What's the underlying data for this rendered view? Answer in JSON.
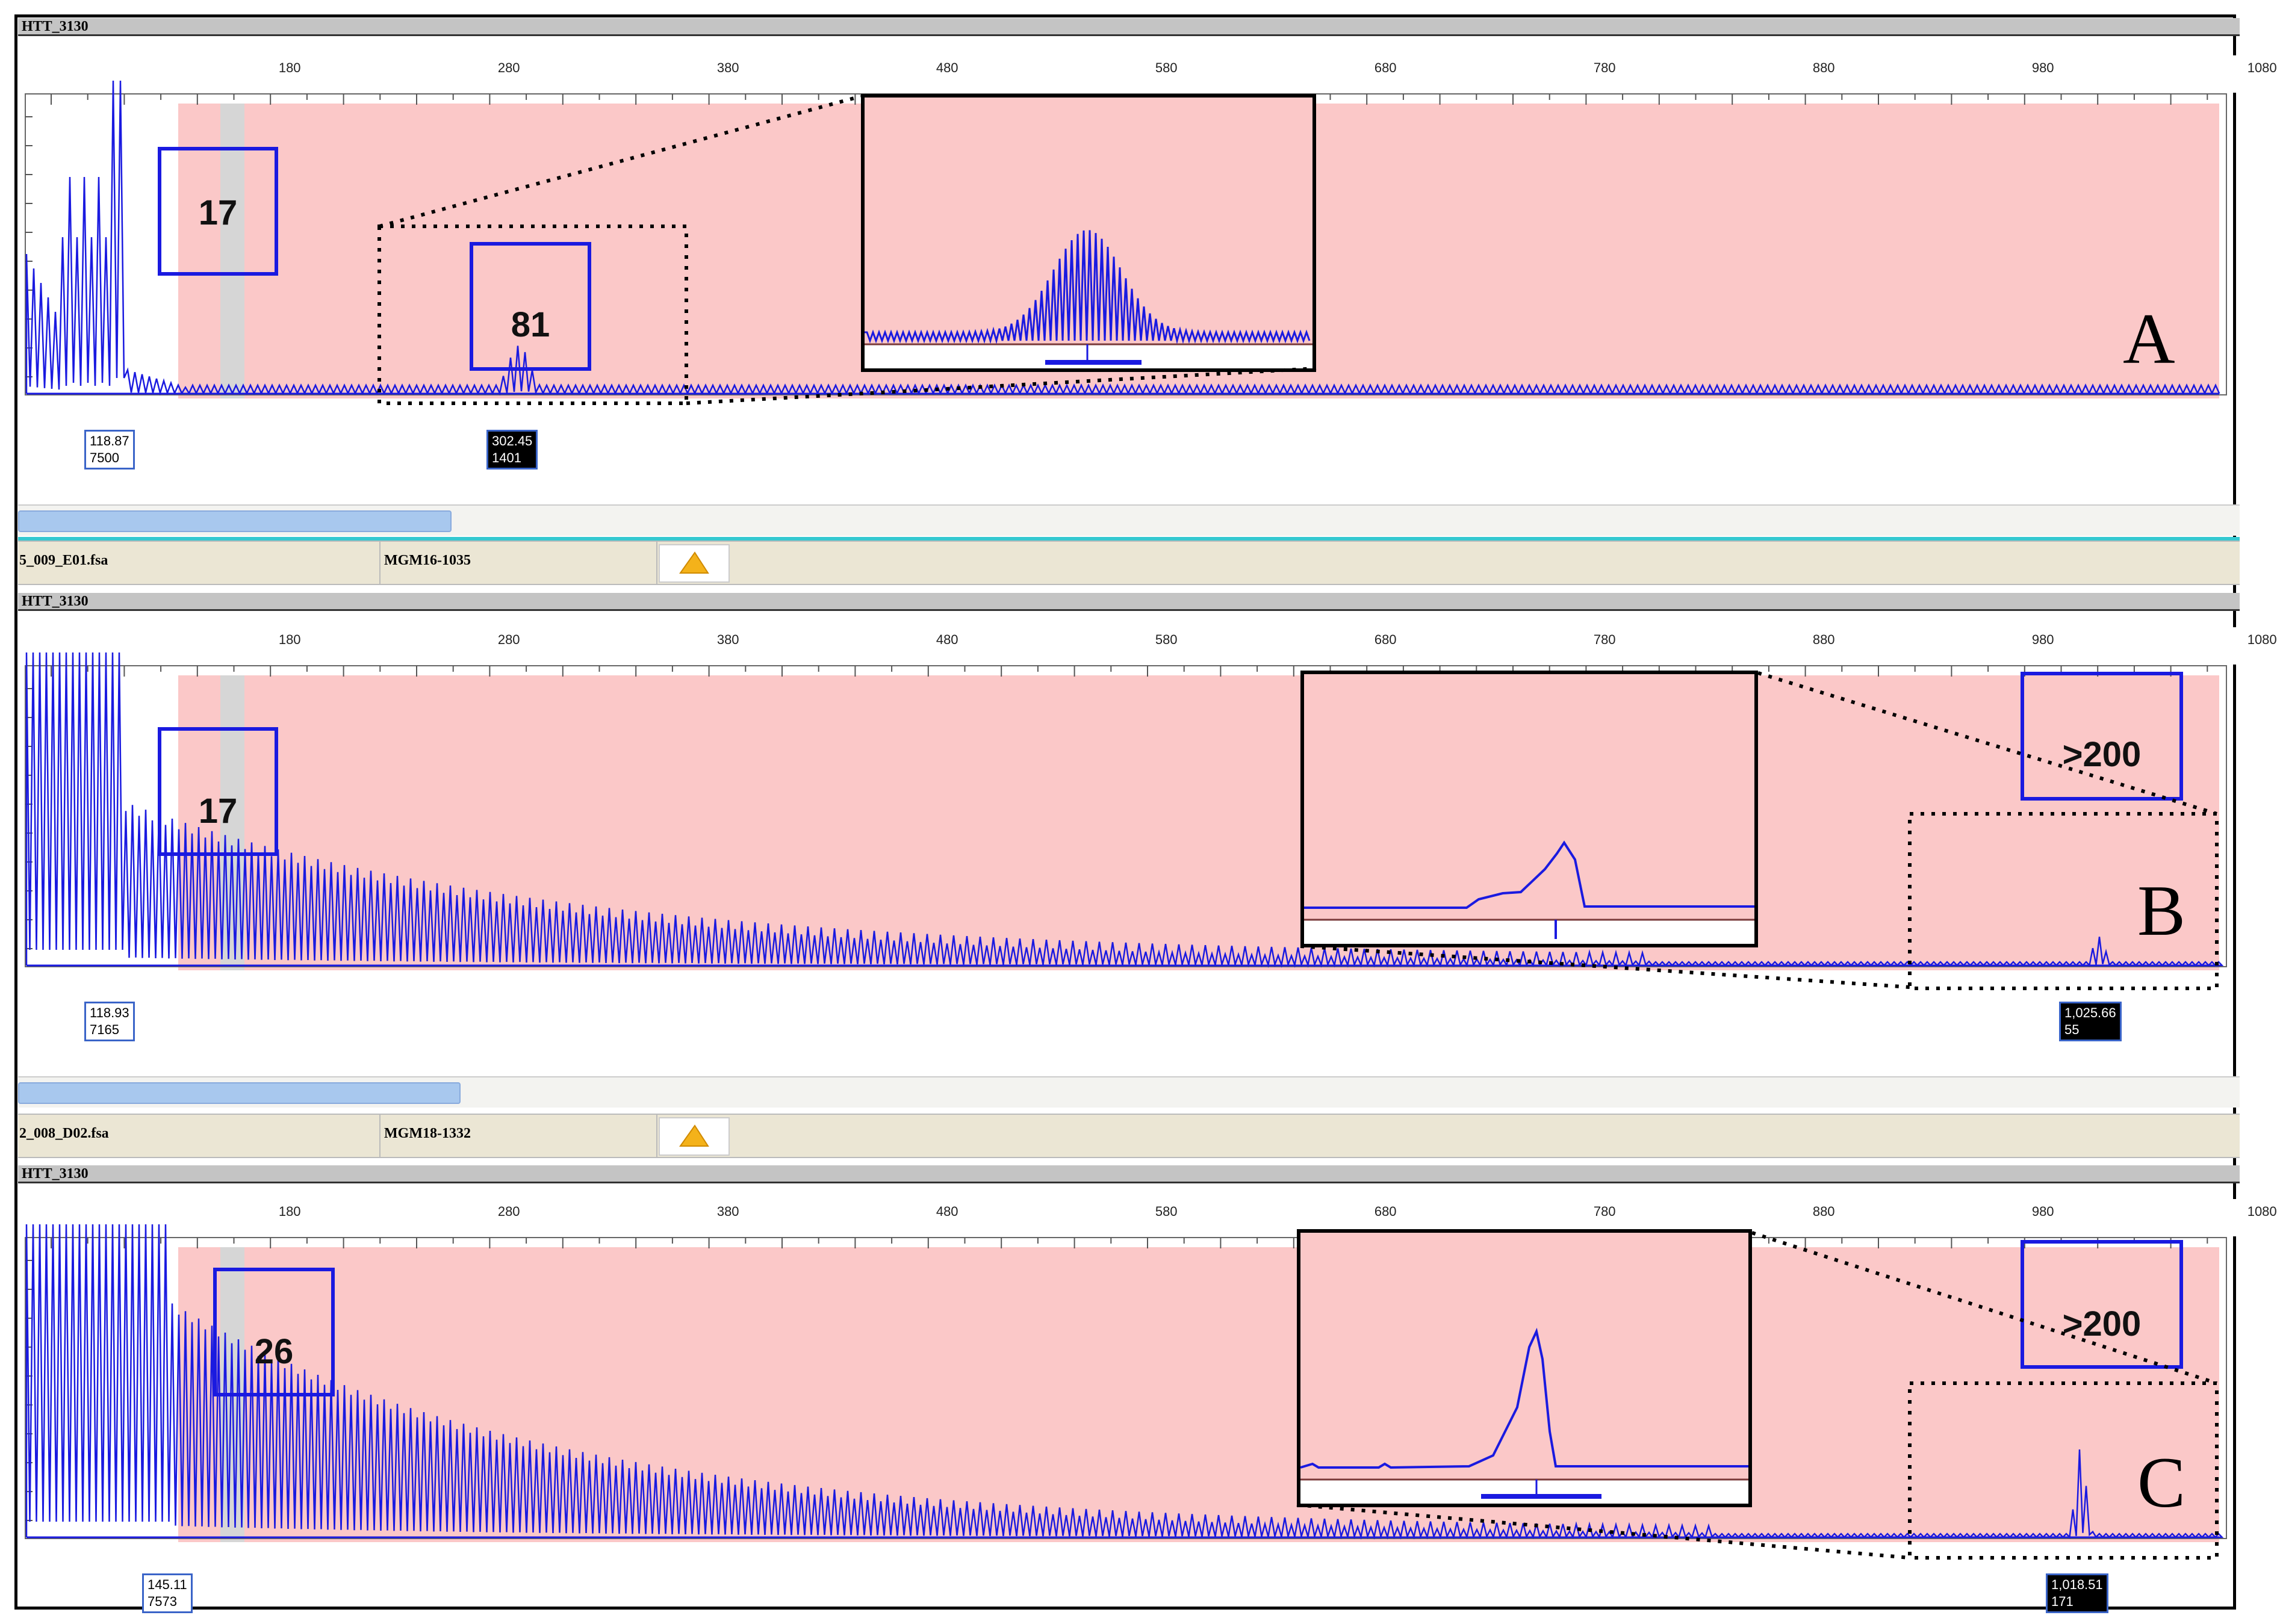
{
  "panels": [
    {
      "id": "A",
      "header": "HTT_3130",
      "ticks": [
        "180",
        "280",
        "380",
        "480",
        "580",
        "680",
        "780",
        "880",
        "980",
        "1080"
      ],
      "peak_left": {
        "size": "118.87",
        "height": "7500"
      },
      "peak_right": {
        "size": "302.45",
        "height": "1401"
      },
      "repeat_boxes": [
        "17",
        "81"
      ],
      "letter": "A"
    },
    {
      "id": "B",
      "file": "5_009_E01.fsa",
      "sample": "MGM16-1035",
      "header": "HTT_3130",
      "ticks": [
        "180",
        "280",
        "380",
        "480",
        "580",
        "680",
        "780",
        "880",
        "980",
        "1080"
      ],
      "peak_left": {
        "size": "118.93",
        "height": "7165"
      },
      "peak_right": {
        "size": "1,025.66",
        "height": "55"
      },
      "repeat_boxes": [
        "17",
        ">200"
      ],
      "letter": "B"
    },
    {
      "id": "C",
      "file": "2_008_D02.fsa",
      "sample": "MGM18-1332",
      "header": "HTT_3130",
      "ticks": [
        "180",
        "280",
        "380",
        "480",
        "580",
        "680",
        "780",
        "880",
        "980",
        "1080"
      ],
      "peak_left": {
        "size": "145.11",
        "height": "7573"
      },
      "peak_right": {
        "size": "1,018.51",
        "height": "171"
      },
      "repeat_boxes": [
        "26",
        ">200"
      ],
      "letter": "C"
    }
  ],
  "colors": {
    "trace": "#1a1ae0",
    "bin_region": "#fbc8c8",
    "gray_bin": "#d6d6d6",
    "box": "#1a1ae0"
  },
  "chart_data": [
    {
      "type": "line",
      "title": "HTT_3130",
      "xlabel": "",
      "ylabel": "",
      "x_ticks": [
        180,
        280,
        380,
        480,
        580,
        680,
        780,
        880,
        980,
        1080
      ],
      "xlim": [
        100,
        1090
      ],
      "peaks": [
        {
          "x": 118.87,
          "y": 7500
        },
        {
          "x": 302.45,
          "y": 1401
        }
      ],
      "annotations": [
        "17",
        "81",
        "A"
      ]
    },
    {
      "type": "line",
      "title": "HTT_3130",
      "xlabel": "",
      "ylabel": "",
      "x_ticks": [
        180,
        280,
        380,
        480,
        580,
        680,
        780,
        880,
        980,
        1080
      ],
      "xlim": [
        100,
        1090
      ],
      "peaks": [
        {
          "x": 118.93,
          "y": 7165
        },
        {
          "x": 1025.66,
          "y": 55
        }
      ],
      "annotations": [
        "17",
        ">200",
        "B"
      ]
    },
    {
      "type": "line",
      "title": "HTT_3130",
      "xlabel": "",
      "ylabel": "",
      "x_ticks": [
        180,
        280,
        380,
        480,
        580,
        680,
        780,
        880,
        980,
        1080
      ],
      "xlim": [
        100,
        1090
      ],
      "peaks": [
        {
          "x": 145.11,
          "y": 7573
        },
        {
          "x": 1018.51,
          "y": 171
        }
      ],
      "annotations": [
        "26",
        ">200",
        "C"
      ]
    }
  ]
}
